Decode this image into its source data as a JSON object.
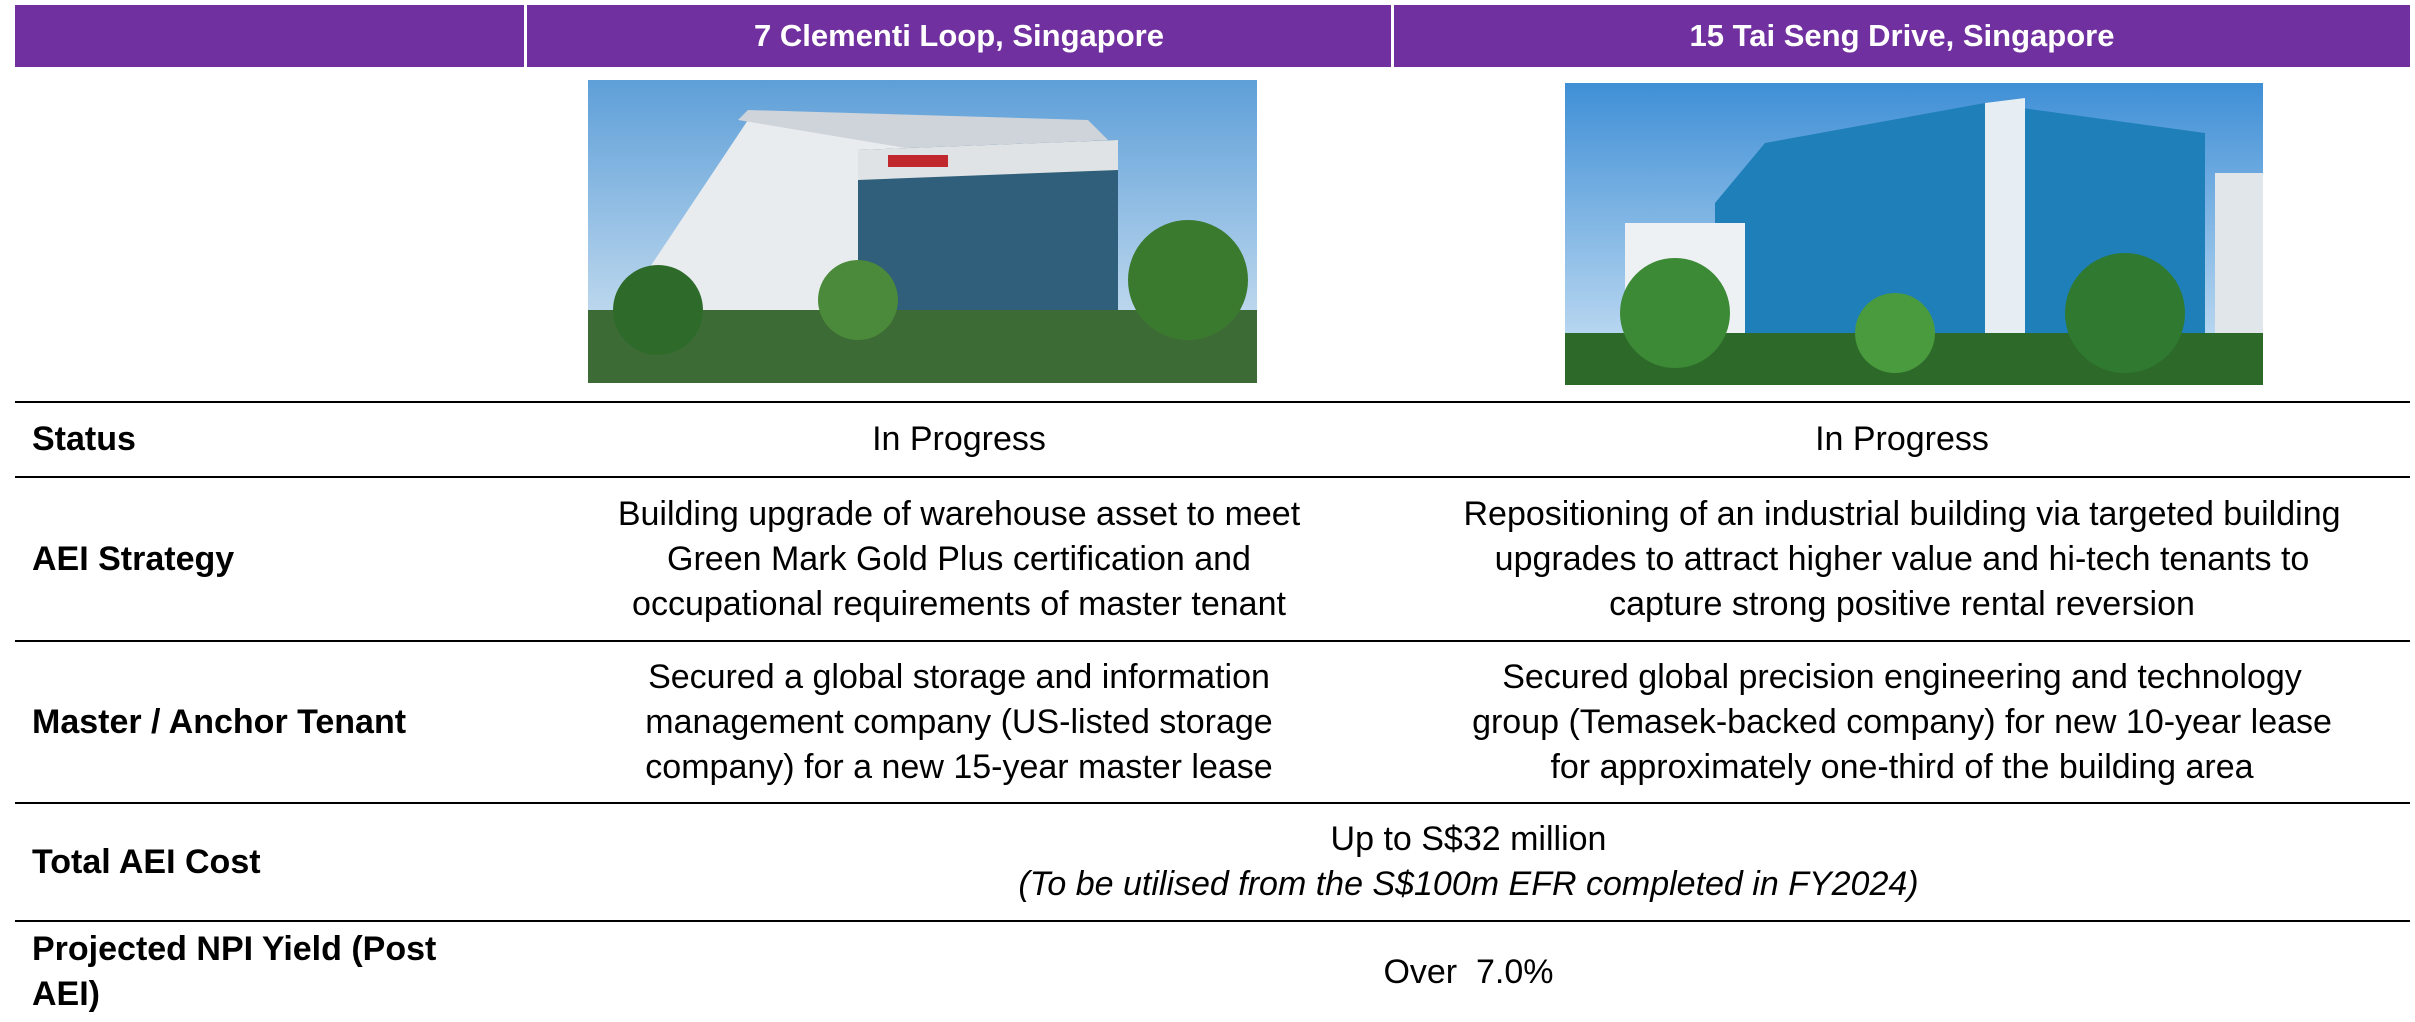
{
  "table": {
    "columns": [
      "7 Clementi Loop, Singapore",
      "15 Tai Seng Drive, Singapore"
    ],
    "rows": [
      {
        "label": "Status",
        "cells": [
          [
            "In Progress"
          ],
          [
            "In Progress"
          ]
        ]
      },
      {
        "label": "AEI Strategy",
        "cells": [
          [
            "Building upgrade of warehouse asset to meet",
            "Green Mark Gold Plus certification and",
            "occupational requirements of master tenant"
          ],
          [
            "Repositioning of an industrial building via targeted building",
            "upgrades to attract higher value and hi-tech tenants to",
            "capture strong positive rental reversion"
          ]
        ]
      },
      {
        "label": "Master / Anchor Tenant",
        "cells": [
          [
            "Secured a global storage and information",
            "management company (US-listed storage",
            "company) for a new 15-year master lease"
          ],
          [
            "Secured global precision engineering and technology",
            "group (Temasek-backed company) for new 10-year lease",
            "for approximately one-third of the building area"
          ]
        ]
      },
      {
        "label": "Total AEI Cost",
        "value": "Up to S$32 million",
        "note": "(To be utilised from the S$100m EFR completed in FY2024)"
      },
      {
        "label": "Projected NPI Yield (Post AEI)",
        "value": "Over  7.0%"
      }
    ]
  }
}
